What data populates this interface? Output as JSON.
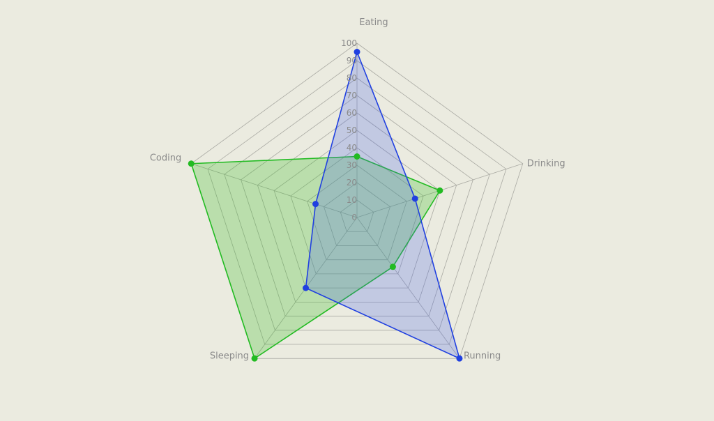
{
  "chart_data": {
    "type": "radar",
    "axes": [
      "Eating",
      "Drinking",
      "Running",
      "Sleeping",
      "Coding"
    ],
    "ticks": [
      "0",
      "10",
      "20",
      "30",
      "40",
      "50",
      "60",
      "70",
      "80",
      "90",
      "100"
    ],
    "range": [
      0,
      100
    ],
    "grid": true,
    "series": [
      {
        "values": [
          35,
          50,
          35,
          100,
          100
        ],
        "color": "#22bb22",
        "fill": "rgba(60, 190, 40, 0.28)"
      },
      {
        "values": [
          95,
          35,
          100,
          50,
          25
        ],
        "color": "#2040e0",
        "fill": "rgba(70, 100, 230, 0.25)"
      }
    ]
  }
}
